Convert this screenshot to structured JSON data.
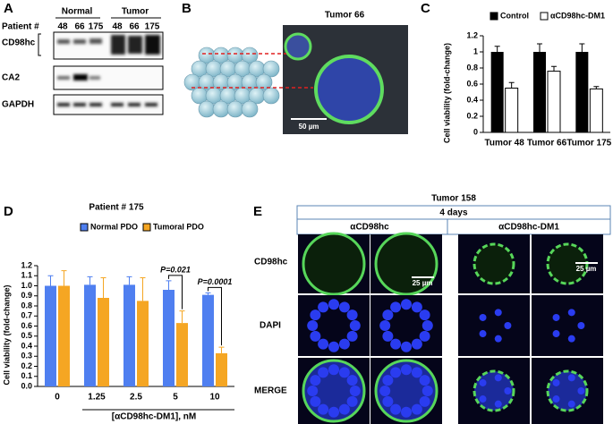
{
  "panel_a": {
    "letter": "A",
    "groups": [
      "Normal",
      "Tumor"
    ],
    "row_label": "Patient #",
    "lanes": [
      "48",
      "66",
      "175",
      "48",
      "66",
      "175"
    ],
    "bands": [
      "CD98hc",
      "CA2",
      "GAPDH"
    ]
  },
  "panel_b": {
    "letter": "B",
    "title": "Tumor 66",
    "scale_bar": "50 µm"
  },
  "panel_e": {
    "letter": "E",
    "title": "Tumor 158",
    "time": "4 days",
    "treatments": [
      "αCD98hc",
      "αCD98hc-DM1"
    ],
    "rows": [
      "CD98hc",
      "DAPI",
      "MERGE"
    ],
    "scale_bars": [
      "25 µm",
      "25 µm"
    ]
  },
  "chart_data": [
    {
      "type": "bar",
      "letter": "C",
      "y_label": "Cell viability (fold-change)",
      "categories": [
        "Tumor 48",
        "Tumor 66",
        "Tumor 175"
      ],
      "series": [
        {
          "name": "Control",
          "color": "#000000",
          "values": [
            1.0,
            1.0,
            1.0
          ],
          "errors": [
            0.07,
            0.1,
            0.1
          ]
        },
        {
          "name": "αCD98hc-DM1",
          "color": "#ffffff",
          "values": [
            0.55,
            0.76,
            0.54
          ],
          "errors": [
            0.07,
            0.06,
            0.03
          ]
        }
      ],
      "ylim": [
        0,
        1.2
      ],
      "yticks": [
        0,
        0.2,
        0.4,
        0.6,
        0.8,
        1,
        1.2
      ]
    },
    {
      "type": "bar",
      "letter": "D",
      "title": "Patient # 175",
      "x_label": "[αCD98hc-DM1], nM",
      "y_label": "Cell viability (fold-change)",
      "categories": [
        "0",
        "1.25",
        "2.5",
        "5",
        "10"
      ],
      "series": [
        {
          "name": "Normal PDO",
          "color": "#4f7ff0",
          "values": [
            1.0,
            1.01,
            1.01,
            0.96,
            0.91
          ],
          "errors": [
            0.1,
            0.08,
            0.08,
            0.09,
            0.02
          ]
        },
        {
          "name": "Tumoral PDO",
          "color": "#f5a623",
          "values": [
            1.0,
            0.88,
            0.85,
            0.63,
            0.33
          ],
          "errors": [
            0.15,
            0.2,
            0.23,
            0.12,
            0.06
          ]
        }
      ],
      "annotations": [
        "P=0.021",
        "P=0.0001"
      ],
      "ylim": [
        0,
        1.2
      ],
      "yticks": [
        {
          "value": 0,
          "label": "0.0"
        },
        {
          "value": 0.1,
          "label": "0.1"
        },
        {
          "value": 0.2,
          "label": "0.2"
        },
        {
          "value": 0.3,
          "label": "0.3"
        },
        {
          "value": 0.4,
          "label": "0.4"
        },
        {
          "value": 0.5,
          "label": "0.5"
        },
        {
          "value": 0.6,
          "label": "0.6"
        },
        {
          "value": 0.7,
          "label": "0.7"
        },
        {
          "value": 0.8,
          "label": "0.8"
        },
        {
          "value": 0.9,
          "label": "0.9"
        },
        {
          "value": 1,
          "label": "1.0"
        },
        {
          "value": 1.1,
          "label": "1.1"
        },
        {
          "value": 1.2,
          "label": "1.2"
        }
      ]
    }
  ]
}
